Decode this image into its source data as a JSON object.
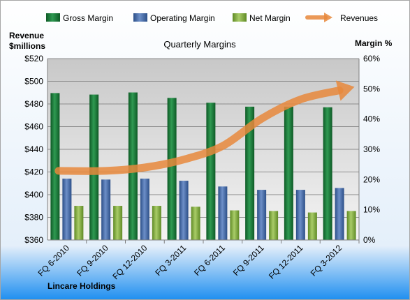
{
  "chart_data": {
    "type": "bar",
    "title": "Quarterly Margins",
    "company": "Lincare Holdings",
    "left_axis_label": [
      "Revenue",
      "$millions"
    ],
    "right_axis_label": "Margin %",
    "categories": [
      "FQ 6-2010",
      "FQ 9-2010",
      "FQ 12-2010",
      "FQ 3-2011",
      "FQ 6-2011",
      "FQ 9-2011",
      "FQ 12-2011",
      "FQ 3-2012"
    ],
    "left_axis": {
      "min": 360,
      "max": 520,
      "step": 20,
      "prefix": "$"
    },
    "right_axis": {
      "min": 0,
      "max": 60,
      "step": 10,
      "suffix": "%"
    },
    "series": [
      {
        "name": "Gross Margin",
        "axis": "right",
        "color": "#1e7a3c",
        "values": [
          48.6,
          48.1,
          48.8,
          47.0,
          45.4,
          44.1,
          44.1,
          43.9
        ]
      },
      {
        "name": "Operating Margin",
        "axis": "right",
        "color": "#4a6fab",
        "values": [
          20.3,
          20.0,
          20.3,
          19.6,
          17.7,
          16.6,
          16.6,
          17.2
        ]
      },
      {
        "name": "Net Margin",
        "axis": "right",
        "color": "#8ab048",
        "values": [
          11.3,
          11.3,
          11.3,
          11.0,
          9.8,
          9.6,
          9.1,
          9.6
        ]
      },
      {
        "name": "Revenues",
        "axis": "left",
        "color": "#e8883c",
        "type": "line",
        "values": [
          421,
          421,
          424,
          431,
          443,
          467,
          484,
          492
        ]
      }
    ],
    "grid": true
  }
}
